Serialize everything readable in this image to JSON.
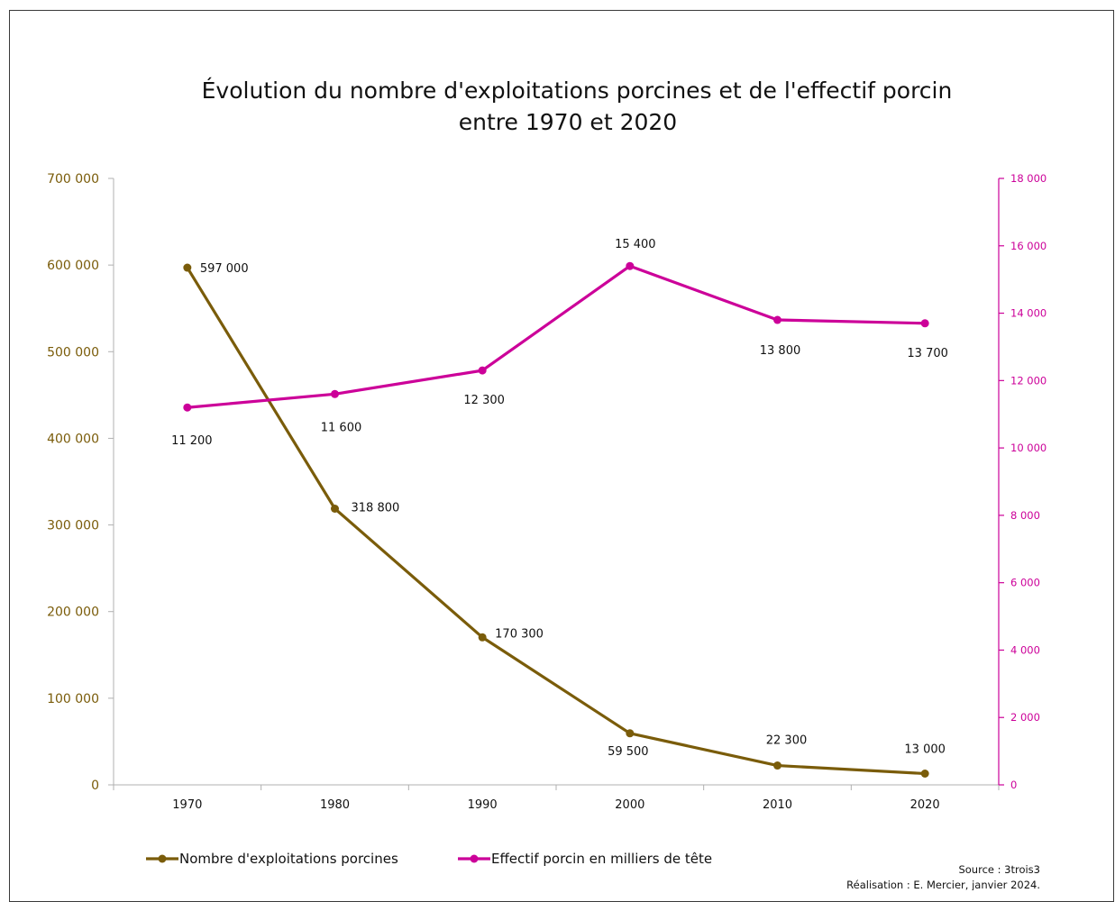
{
  "chart_data": {
    "type": "line",
    "title": [
      "Évolution du nombre d'exploitations porcines et de l'effectif porcin",
      "entre 1970 et 2020"
    ],
    "categories": [
      "1970",
      "1980",
      "1990",
      "2000",
      "2010",
      "2020"
    ],
    "series": [
      {
        "name": "Nombre d'exploitations porcines",
        "axis": "left",
        "color": "#7a5c0a",
        "values": [
          597000,
          318800,
          170300,
          59500,
          22300,
          13000
        ],
        "labels": [
          "597 000",
          "318 800",
          "170 300",
          "59 500",
          "22 300",
          "13 000"
        ]
      },
      {
        "name": "Effectif porcin en milliers de tête",
        "axis": "right",
        "color": "#cc0099",
        "values": [
          11200,
          11600,
          12300,
          15400,
          13800,
          13700
        ],
        "labels": [
          "11 200",
          "11 600",
          "12 300",
          "15 400",
          "13 800",
          "13 700"
        ]
      }
    ],
    "y_left": {
      "lim": [
        0,
        700000
      ],
      "ticks": [
        "0",
        "100 000",
        "200 000",
        "300 000",
        "400 000",
        "500 000",
        "600 000",
        "700 000"
      ],
      "color": "#7a5c0a"
    },
    "y_right": {
      "lim": [
        0,
        18000
      ],
      "ticks": [
        "0",
        "2 000",
        "4 000",
        "6 000",
        "8 000",
        "10 000",
        "12 000",
        "14 000",
        "16 000",
        "18 000"
      ],
      "color": "#cc0099"
    },
    "grid": false,
    "legend_position": "bottom-left"
  },
  "source": [
    "Source : 3trois3",
    "Réalisation : E. Mercier, janvier 2024."
  ]
}
